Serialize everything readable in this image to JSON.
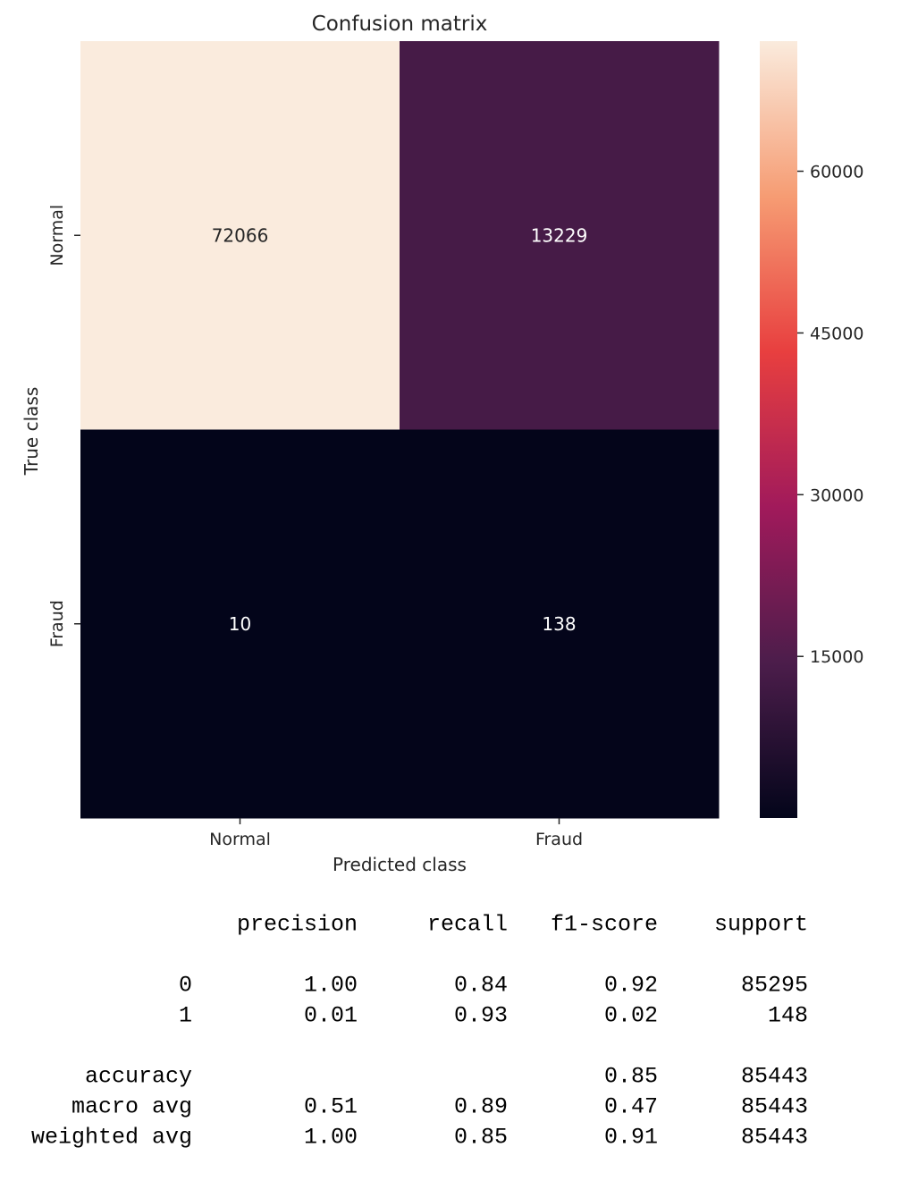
{
  "chart_data": {
    "type": "heatmap",
    "title": "Confusion matrix",
    "xlabel": "Predicted class",
    "ylabel": "True class",
    "x_categories": [
      "Normal",
      "Fraud"
    ],
    "y_categories": [
      "Normal",
      "Fraud"
    ],
    "values": [
      [
        72066,
        13229
      ],
      [
        10,
        138
      ]
    ],
    "colorbar": {
      "ticks": [
        15000,
        30000,
        45000,
        60000
      ],
      "tick_labels": [
        "15000",
        "30000",
        "45000",
        "60000"
      ],
      "range": [
        10,
        72066
      ],
      "colormap": "rocket",
      "colormap_stops": [
        "#03051a",
        "#4c1d4b",
        "#a11a5b",
        "#e83f3f",
        "#f69c73",
        "#faebdd"
      ]
    }
  },
  "report": {
    "headers": [
      "precision",
      "recall",
      "f1-score",
      "support"
    ],
    "rows": [
      {
        "label": "0",
        "precision": "1.00",
        "recall": "0.84",
        "f1": "0.92",
        "support": "85295"
      },
      {
        "label": "1",
        "precision": "0.01",
        "recall": "0.93",
        "f1": "0.02",
        "support": "148"
      },
      {
        "label": "accuracy",
        "precision": "",
        "recall": "",
        "f1": "0.85",
        "support": "85443"
      },
      {
        "label": "macro avg",
        "precision": "0.51",
        "recall": "0.89",
        "f1": "0.47",
        "support": "85443"
      },
      {
        "label": "weighted avg",
        "precision": "1.00",
        "recall": "0.85",
        "f1": "0.91",
        "support": "85443"
      }
    ]
  }
}
